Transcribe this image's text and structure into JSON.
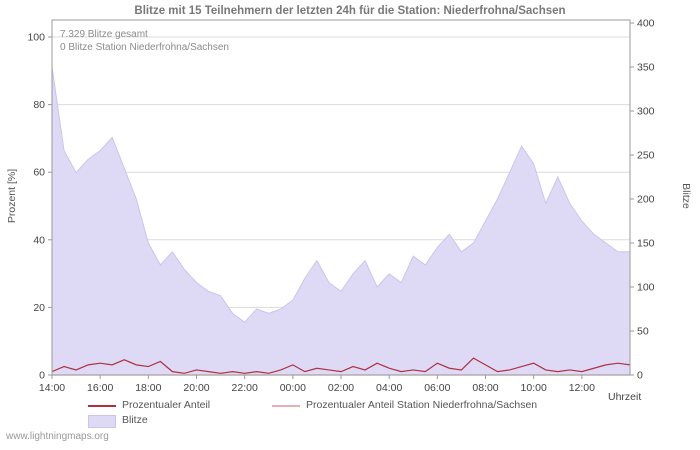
{
  "page": {
    "watermark": "www.lightningmaps.org"
  },
  "chart": {
    "title": "Blitze mit 15 Teilnehmern der letzten 24h für die Station: Niederfrohna/Sachsen",
    "annotations": [
      "7.329 Blitze gesamt",
      "0 Blitze Station Niederfrohna/Sachsen"
    ],
    "ylabel_left": "Prozent  [%]",
    "ylabel_right": "Blitze",
    "xlabel": "Uhrzeit",
    "legend": [
      {
        "label": "Prozentualer Anteil"
      },
      {
        "label": "Prozentualer Anteil Station Niederfrohna/Sachsen"
      },
      {
        "label": "Blitze"
      }
    ]
  },
  "chart_data": {
    "type": "area",
    "title": "Blitze mit 15 Teilnehmern der letzten 24h für die Station: Niederfrohna/Sachsen",
    "x_start": "14:00",
    "x_interval_minutes": 30,
    "x_tick_labels": [
      "14:00",
      "16:00",
      "18:00",
      "20:00",
      "22:00",
      "00:00",
      "02:00",
      "04:00",
      "06:00",
      "08:00",
      "10:00",
      "12:00"
    ],
    "x_tick_positions_hours": [
      0,
      2,
      4,
      6,
      8,
      10,
      12,
      14,
      16,
      18,
      20,
      22
    ],
    "times": [
      "14:00",
      "14:30",
      "15:00",
      "15:30",
      "16:00",
      "16:30",
      "17:00",
      "17:30",
      "18:00",
      "18:30",
      "19:00",
      "19:30",
      "20:00",
      "20:30",
      "21:00",
      "21:30",
      "22:00",
      "22:30",
      "23:00",
      "23:30",
      "00:00",
      "00:30",
      "01:00",
      "01:30",
      "02:00",
      "02:30",
      "03:00",
      "03:30",
      "04:00",
      "04:30",
      "05:00",
      "05:30",
      "06:00",
      "06:30",
      "07:00",
      "07:30",
      "08:00",
      "08:30",
      "09:00",
      "09:30",
      "10:00",
      "10:30",
      "11:00",
      "11:30",
      "12:00",
      "12:30",
      "13:00",
      "13:30",
      "14:00"
    ],
    "axes": {
      "left": {
        "label": "Prozent [%]",
        "range": [
          0,
          100
        ],
        "ticks": [
          0,
          20,
          40,
          60,
          80,
          100
        ]
      },
      "right": {
        "label": "Blitze",
        "range": [
          0,
          400
        ],
        "ticks": [
          0,
          50,
          100,
          150,
          200,
          250,
          300,
          350,
          400
        ]
      },
      "x": {
        "label": "Uhrzeit",
        "grid": "horizontal-only"
      }
    },
    "series": [
      {
        "name": "Blitze",
        "type": "area",
        "axis": "right",
        "color": "#dedaf6",
        "edge_color": "#cbc4ef",
        "values": [
          350,
          255,
          230,
          245,
          255,
          270,
          235,
          200,
          150,
          125,
          140,
          120,
          105,
          95,
          90,
          70,
          60,
          75,
          70,
          75,
          85,
          110,
          130,
          105,
          95,
          115,
          130,
          100,
          115,
          105,
          135,
          125,
          145,
          160,
          140,
          150,
          175,
          200,
          230,
          260,
          240,
          195,
          225,
          195,
          175,
          160,
          150,
          140,
          140
        ]
      },
      {
        "name": "Prozentualer Anteil",
        "type": "line",
        "axis": "left",
        "color": "#b03040",
        "values": [
          1,
          2.5,
          1.5,
          3,
          3.5,
          3,
          4.5,
          3,
          2.5,
          4,
          1,
          0.5,
          1.5,
          1,
          0.5,
          1,
          0.5,
          1,
          0.5,
          1.5,
          3,
          1,
          2,
          1.5,
          1,
          2.5,
          1.5,
          3.5,
          2,
          1,
          1.5,
          1,
          3.5,
          2,
          1.5,
          5,
          3,
          1,
          1.5,
          2.5,
          3.5,
          1.5,
          1,
          1.5,
          1,
          2,
          3,
          3.5,
          3
        ]
      },
      {
        "name": "Prozentualer Anteil Station Niederfrohna/Sachsen",
        "type": "line",
        "axis": "left",
        "color": "#e7aeb5",
        "values": [
          0,
          0,
          0,
          0,
          0,
          0,
          0,
          0,
          0,
          0,
          0,
          0,
          0,
          0,
          0,
          0,
          0,
          0,
          0,
          0,
          0,
          0,
          0,
          0,
          0,
          0,
          0,
          0,
          0,
          0,
          0,
          0,
          0,
          0,
          0,
          0,
          0,
          0,
          0,
          0,
          0,
          0,
          0,
          0,
          0,
          0,
          0,
          0,
          0
        ]
      }
    ],
    "colors": {
      "grid": "#dcdcdc",
      "axis": "#999999",
      "tick_text": "#444444",
      "title_text": "#787878",
      "annotation_text": "#8b8b8b"
    },
    "totals": {
      "blitze_gesamt": 7329,
      "blitze_station": 0
    }
  }
}
